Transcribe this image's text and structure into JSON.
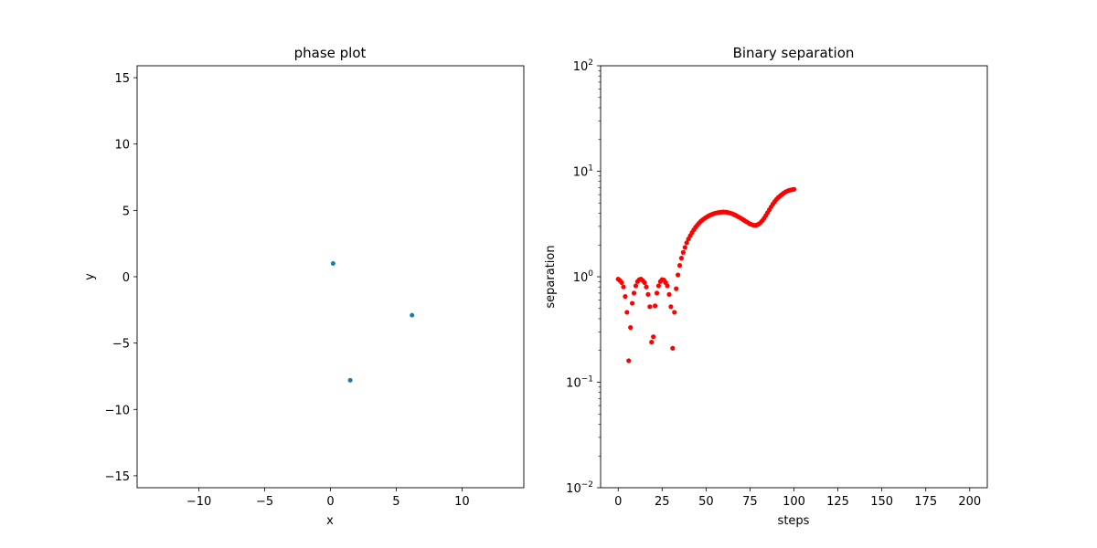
{
  "chart_data": [
    {
      "type": "scatter",
      "title": "phase plot",
      "xlabel": "x",
      "ylabel": "y",
      "xlim": [
        -14.7,
        14.7
      ],
      "ylim": [
        -15.9,
        15.9
      ],
      "xticks": [
        -10,
        -5,
        0,
        5,
        10
      ],
      "yticks": [
        -15,
        -10,
        -5,
        0,
        5,
        10,
        15
      ],
      "xtick_labels": [
        "−10",
        "−5",
        "0",
        "5",
        "10"
      ],
      "ytick_labels": [
        "−15",
        "−10",
        "−5",
        "0",
        "5",
        "10",
        "15"
      ],
      "color": "#1f77b4",
      "points": [
        {
          "x": 0.2,
          "y": 1.0
        },
        {
          "x": 6.2,
          "y": -2.9
        },
        {
          "x": 1.5,
          "y": -7.8
        }
      ]
    },
    {
      "type": "scatter",
      "title": "Binary separation",
      "xlabel": "steps",
      "ylabel": "separation",
      "yscale": "log",
      "xlim": [
        -10,
        210
      ],
      "ylim": [
        0.01,
        100
      ],
      "xticks": [
        0,
        25,
        50,
        75,
        100,
        125,
        150,
        175,
        200
      ],
      "xtick_labels": [
        "0",
        "25",
        "50",
        "75",
        "100",
        "125",
        "150",
        "175",
        "200"
      ],
      "yticks": [
        0.01,
        0.1,
        1,
        10,
        100
      ],
      "ytick_labels": [
        {
          "base": "10",
          "exp": "−2"
        },
        {
          "base": "10",
          "exp": "−1"
        },
        {
          "base": "10",
          "exp": "0"
        },
        {
          "base": "10",
          "exp": "1"
        },
        {
          "base": "10",
          "exp": "2"
        }
      ],
      "color": "#ff0000",
      "x": [
        0,
        1,
        2,
        3,
        4,
        5,
        6,
        7,
        8,
        9,
        10,
        11,
        12,
        13,
        14,
        15,
        16,
        17,
        18,
        19,
        20,
        21,
        22,
        23,
        24,
        25,
        26,
        27,
        28,
        29,
        30,
        31,
        32,
        33,
        34,
        35,
        36,
        37,
        38,
        39,
        40,
        41,
        42,
        43,
        44,
        45,
        46,
        47,
        48,
        49,
        50,
        51,
        52,
        53,
        54,
        55,
        56,
        57,
        58,
        59,
        60,
        61,
        62,
        63,
        64,
        65,
        66,
        67,
        68,
        69,
        70,
        71,
        72,
        73,
        74,
        75,
        76,
        77,
        78,
        79,
        80,
        81,
        82,
        83,
        84,
        85,
        86,
        87,
        88,
        89,
        90,
        91,
        92,
        93,
        94,
        95,
        96,
        97,
        98,
        99,
        100
      ],
      "y": [
        0.95,
        0.92,
        0.88,
        0.8,
        0.65,
        0.46,
        0.16,
        0.33,
        0.56,
        0.7,
        0.82,
        0.9,
        0.94,
        0.95,
        0.92,
        0.88,
        0.8,
        0.68,
        0.52,
        0.24,
        0.27,
        0.53,
        0.7,
        0.82,
        0.9,
        0.94,
        0.93,
        0.88,
        0.82,
        0.68,
        0.52,
        0.21,
        0.46,
        0.77,
        1.04,
        1.28,
        1.5,
        1.7,
        1.9,
        2.1,
        2.28,
        2.45,
        2.62,
        2.78,
        2.94,
        3.08,
        3.22,
        3.35,
        3.46,
        3.56,
        3.65,
        3.74,
        3.81,
        3.88,
        3.94,
        3.99,
        4.03,
        4.06,
        4.08,
        4.1,
        4.11,
        4.1,
        4.08,
        4.04,
        4.0,
        3.95,
        3.88,
        3.81,
        3.73,
        3.65,
        3.57,
        3.48,
        3.4,
        3.32,
        3.24,
        3.17,
        3.12,
        3.08,
        3.07,
        3.1,
        3.16,
        3.26,
        3.4,
        3.58,
        3.8,
        4.05,
        4.32,
        4.6,
        4.88,
        5.15,
        5.4,
        5.62,
        5.82,
        6.0,
        6.18,
        6.33,
        6.46,
        6.56,
        6.64,
        6.7,
        6.75
      ]
    }
  ]
}
